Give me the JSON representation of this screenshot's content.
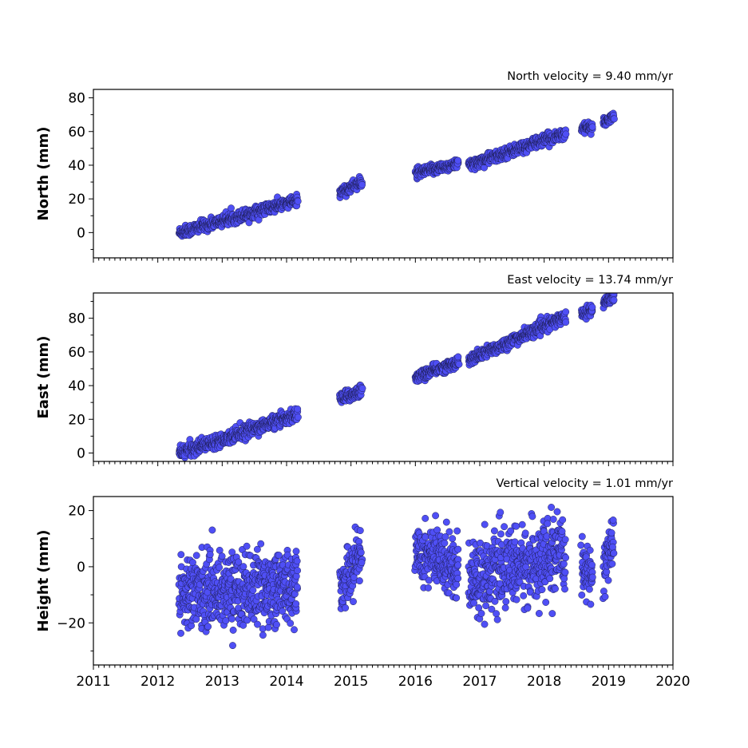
{
  "chart_data": [
    {
      "type": "scatter",
      "title": "North velocity = 9.40 mm/yr",
      "xlabel": "",
      "ylabel": "North (mm)",
      "xlim": [
        2011,
        2020
      ],
      "ylim": [
        -15,
        85
      ],
      "yticks": [
        0,
        20,
        40,
        60,
        80
      ],
      "xticks": [
        2011,
        2012,
        2013,
        2014,
        2015,
        2016,
        2017,
        2018,
        2019,
        2020
      ],
      "show_xtick_labels": false,
      "segments": [
        {
          "start": 2012.33,
          "end": 2014.17,
          "y0": 0,
          "y1": 19,
          "noise": 1.6
        },
        {
          "start": 2014.83,
          "end": 2015.17,
          "y0": 24,
          "y1": 30,
          "noise": 1.5
        },
        {
          "start": 2016.0,
          "end": 2016.67,
          "y0": 35,
          "y1": 41,
          "noise": 1.4
        },
        {
          "start": 2016.83,
          "end": 2018.33,
          "y0": 40,
          "y1": 59,
          "noise": 1.6
        },
        {
          "start": 2018.58,
          "end": 2018.75,
          "y0": 62,
          "y1": 63,
          "noise": 1.2
        },
        {
          "start": 2018.92,
          "end": 2019.08,
          "y0": 65,
          "y1": 69,
          "noise": 1.2
        }
      ]
    },
    {
      "type": "scatter",
      "title": "East velocity = 13.74 mm/yr",
      "xlabel": "",
      "ylabel": "East (mm)",
      "xlim": [
        2011,
        2020
      ],
      "ylim": [
        -5,
        95
      ],
      "yticks": [
        0,
        20,
        40,
        60,
        80
      ],
      "xticks": [
        2011,
        2012,
        2013,
        2014,
        2015,
        2016,
        2017,
        2018,
        2019,
        2020
      ],
      "show_xtick_labels": false,
      "segments": [
        {
          "start": 2012.33,
          "end": 2014.17,
          "y0": 0,
          "y1": 23,
          "noise": 1.8
        },
        {
          "start": 2014.83,
          "end": 2015.17,
          "y0": 32,
          "y1": 37,
          "noise": 1.8
        },
        {
          "start": 2016.0,
          "end": 2016.67,
          "y0": 45,
          "y1": 54,
          "noise": 1.5
        },
        {
          "start": 2016.83,
          "end": 2018.33,
          "y0": 55,
          "y1": 81,
          "noise": 1.7
        },
        {
          "start": 2018.58,
          "end": 2018.75,
          "y0": 83,
          "y1": 85,
          "noise": 1.5
        },
        {
          "start": 2018.92,
          "end": 2019.08,
          "y0": 89,
          "y1": 93,
          "noise": 1.5
        }
      ]
    },
    {
      "type": "scatter",
      "title": "Vertical velocity = 1.01 mm/yr",
      "xlabel": "",
      "ylabel": "Height (mm)",
      "xlim": [
        2011,
        2020
      ],
      "ylim": [
        -35,
        25
      ],
      "yticks": [
        -20,
        0,
        20
      ],
      "ytick_labels": [
        "−20",
        "0",
        "20"
      ],
      "xticks": [
        2011,
        2012,
        2013,
        2014,
        2015,
        2016,
        2017,
        2018,
        2019,
        2020
      ],
      "show_xtick_labels": true,
      "segments": [
        {
          "start": 2012.33,
          "end": 2014.17,
          "y0": -9,
          "y1": -7,
          "noise": 6.5
        },
        {
          "start": 2014.83,
          "end": 2015.17,
          "y0": -8,
          "y1": 6,
          "noise": 4.5
        },
        {
          "start": 2016.0,
          "end": 2016.67,
          "y0": 6,
          "y1": 0,
          "noise": 5.5
        },
        {
          "start": 2016.83,
          "end": 2018.33,
          "y0": -4,
          "y1": 4,
          "noise": 6.5
        },
        {
          "start": 2018.58,
          "end": 2018.75,
          "y0": 0,
          "y1": -4,
          "noise": 4.0
        },
        {
          "start": 2018.92,
          "end": 2019.08,
          "y0": 0,
          "y1": 10,
          "noise": 5.0
        }
      ]
    }
  ],
  "colors": {
    "marker_fill": "#4f4ff5",
    "marker_edge": "#1a1a4a",
    "axes": "#000000",
    "background": "#ffffff"
  }
}
